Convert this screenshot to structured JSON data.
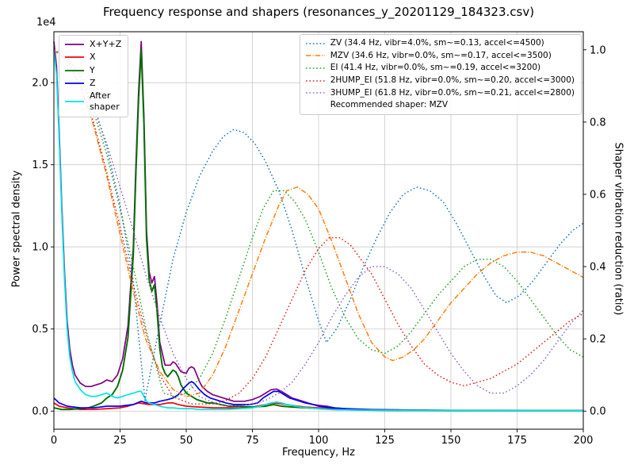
{
  "chart_data": {
    "type": "line",
    "title": "Frequency response and shapers (resonances_y_20201129_184323.csv)",
    "xlabel": "Frequency, Hz",
    "ylabel_left": "Power spectral density",
    "ylabel_right": "Shaper vibration reduction (ratio)",
    "offset_text": "1e4",
    "recommendation": "Recommended shaper: MZV",
    "grid": true,
    "psd_unit": "1e4",
    "xlim": [
      0,
      200
    ],
    "xticks": [
      0,
      25,
      50,
      75,
      100,
      125,
      150,
      175,
      200
    ],
    "xtick_labels": [
      "0",
      "25",
      "50",
      "75",
      "100",
      "125",
      "150",
      "175",
      "200"
    ],
    "ylim_left": [
      -0.11,
      2.31
    ],
    "yticks_left": [
      {
        "v": 0.0,
        "label": "0.0"
      },
      {
        "v": 0.5,
        "label": "0.5"
      },
      {
        "v": 1.0,
        "label": "1.0"
      },
      {
        "v": 1.5,
        "label": "1.5"
      },
      {
        "v": 2.0,
        "label": "2.0"
      }
    ],
    "ylim_right": [
      -0.05,
      1.05
    ],
    "yticks_right": [
      {
        "v": 0.0,
        "label": "0.0"
      },
      {
        "v": 0.2,
        "label": "0.2"
      },
      {
        "v": 0.4,
        "label": "0.4"
      },
      {
        "v": 0.6,
        "label": "0.6"
      },
      {
        "v": 0.8,
        "label": "0.8"
      },
      {
        "v": 1.0,
        "label": "1.0"
      }
    ],
    "colors": {
      "grid": "#c9c9c9",
      "spine": "#000000"
    },
    "psd_series": [
      {
        "name": "xyz",
        "label": "X+Y+Z",
        "color": "#800080",
        "style": "solid",
        "width": 1.7,
        "x": [
          0,
          1,
          2,
          3,
          4,
          5,
          6,
          7,
          8,
          10,
          12,
          14,
          16,
          18,
          20,
          22,
          24,
          26,
          28,
          30,
          31,
          32,
          33,
          34,
          35,
          36,
          37,
          38,
          39,
          40,
          42,
          44,
          45,
          46,
          48,
          50,
          51,
          52,
          53,
          54,
          55,
          56,
          58,
          60,
          62,
          64,
          66,
          68,
          70,
          72,
          75,
          78,
          80,
          82,
          84,
          86,
          88,
          90,
          92,
          94,
          96,
          98,
          100,
          103,
          106,
          110,
          115,
          120,
          130,
          140,
          150,
          160,
          170,
          180,
          190,
          200
        ],
        "y": [
          2.25,
          2.1,
          1.7,
          1.25,
          0.85,
          0.55,
          0.38,
          0.28,
          0.22,
          0.17,
          0.15,
          0.15,
          0.16,
          0.17,
          0.19,
          0.18,
          0.22,
          0.32,
          0.52,
          1.0,
          1.5,
          1.95,
          2.25,
          1.8,
          1.1,
          0.85,
          0.78,
          0.82,
          0.65,
          0.42,
          0.28,
          0.28,
          0.3,
          0.29,
          0.24,
          0.23,
          0.26,
          0.27,
          0.26,
          0.22,
          0.18,
          0.15,
          0.12,
          0.1,
          0.09,
          0.08,
          0.07,
          0.06,
          0.06,
          0.06,
          0.07,
          0.09,
          0.11,
          0.13,
          0.135,
          0.12,
          0.1,
          0.08,
          0.07,
          0.06,
          0.05,
          0.04,
          0.035,
          0.03,
          0.02,
          0.015,
          0.01,
          0.008,
          0.006,
          0.005,
          0.004,
          0.004,
          0.003,
          0.003,
          0.003,
          0.003
        ]
      },
      {
        "name": "x",
        "label": "X",
        "color": "#ff0000",
        "style": "solid",
        "width": 1.7,
        "x": [
          0,
          2,
          5,
          10,
          15,
          20,
          25,
          28,
          30,
          32,
          34,
          36,
          38,
          40,
          43,
          45,
          47,
          50,
          55,
          60,
          65,
          70,
          75,
          80,
          83,
          86,
          90,
          95,
          100,
          110,
          120,
          140,
          160,
          180,
          200
        ],
        "y": [
          0.05,
          0.03,
          0.02,
          0.01,
          0.01,
          0.015,
          0.02,
          0.03,
          0.04,
          0.05,
          0.045,
          0.04,
          0.04,
          0.04,
          0.05,
          0.05,
          0.04,
          0.03,
          0.025,
          0.02,
          0.02,
          0.02,
          0.025,
          0.04,
          0.05,
          0.045,
          0.035,
          0.025,
          0.02,
          0.01,
          0.008,
          0.005,
          0.004,
          0.003,
          0.003
        ]
      },
      {
        "name": "y",
        "label": "Y",
        "color": "#007000",
        "style": "solid",
        "width": 1.9,
        "x": [
          0,
          3,
          6,
          10,
          13,
          15,
          18,
          20,
          22,
          24,
          26,
          28,
          30,
          31,
          32,
          33,
          34,
          35,
          36,
          37,
          38,
          39,
          40,
          41,
          42,
          43,
          44,
          45,
          46,
          47,
          48,
          50,
          52,
          54,
          56,
          58,
          60,
          63,
          66,
          70,
          75,
          80,
          83,
          86,
          90,
          95,
          100,
          105,
          110,
          120,
          130,
          140,
          160,
          180,
          200
        ],
        "y": [
          0.02,
          0.01,
          0.01,
          0.015,
          0.02,
          0.03,
          0.05,
          0.08,
          0.1,
          0.15,
          0.25,
          0.45,
          0.95,
          1.45,
          1.9,
          2.2,
          1.75,
          1.05,
          0.8,
          0.73,
          0.77,
          0.6,
          0.38,
          0.27,
          0.23,
          0.21,
          0.23,
          0.25,
          0.24,
          0.21,
          0.16,
          0.11,
          0.09,
          0.07,
          0.06,
          0.05,
          0.05,
          0.04,
          0.03,
          0.03,
          0.025,
          0.03,
          0.04,
          0.03,
          0.025,
          0.02,
          0.015,
          0.01,
          0.008,
          0.005,
          0.004,
          0.003,
          0.002,
          0.002,
          0.002
        ]
      },
      {
        "name": "z",
        "label": "Z",
        "color": "#0000ff",
        "style": "solid",
        "width": 1.7,
        "x": [
          0,
          2,
          5,
          10,
          15,
          20,
          25,
          30,
          33,
          35,
          38,
          40,
          43,
          45,
          47,
          49,
          51,
          52,
          53,
          55,
          57,
          59,
          61,
          63,
          65,
          68,
          71,
          74,
          77,
          79,
          81,
          83,
          85,
          87,
          89,
          91,
          93,
          95,
          98,
          100,
          105,
          110,
          120,
          130,
          140,
          150,
          160,
          170,
          180,
          190,
          200
        ],
        "y": [
          0.08,
          0.05,
          0.03,
          0.02,
          0.02,
          0.03,
          0.03,
          0.04,
          0.06,
          0.05,
          0.05,
          0.06,
          0.07,
          0.08,
          0.1,
          0.14,
          0.17,
          0.18,
          0.17,
          0.13,
          0.1,
          0.08,
          0.07,
          0.06,
          0.05,
          0.04,
          0.04,
          0.04,
          0.05,
          0.08,
          0.1,
          0.12,
          0.12,
          0.1,
          0.08,
          0.07,
          0.06,
          0.05,
          0.04,
          0.03,
          0.02,
          0.015,
          0.01,
          0.008,
          0.006,
          0.005,
          0.004,
          0.004,
          0.003,
          0.003,
          0.003
        ]
      },
      {
        "name": "after-shaper",
        "label": "After\nshaper",
        "color": "#00e5e5",
        "style": "solid",
        "width": 1.7,
        "x": [
          0,
          1,
          2,
          3,
          4,
          5,
          6,
          7,
          8,
          10,
          12,
          14,
          16,
          18,
          20,
          22,
          24,
          26,
          28,
          30,
          31,
          32,
          33,
          34,
          35,
          36,
          38,
          40,
          43,
          45,
          48,
          50,
          52,
          55,
          60,
          65,
          70,
          75,
          78,
          80,
          82,
          84,
          86,
          88,
          90,
          93,
          96,
          100,
          105,
          110,
          120,
          130,
          140,
          150,
          160,
          170,
          180,
          190,
          200
        ],
        "y": [
          2.2,
          2.05,
          1.65,
          1.2,
          0.8,
          0.5,
          0.33,
          0.24,
          0.18,
          0.13,
          0.1,
          0.09,
          0.09,
          0.1,
          0.11,
          0.09,
          0.08,
          0.09,
          0.1,
          0.11,
          0.115,
          0.12,
          0.12,
          0.09,
          0.06,
          0.05,
          0.04,
          0.03,
          0.02,
          0.02,
          0.015,
          0.015,
          0.015,
          0.01,
          0.01,
          0.01,
          0.015,
          0.02,
          0.03,
          0.04,
          0.05,
          0.055,
          0.05,
          0.04,
          0.035,
          0.025,
          0.02,
          0.015,
          0.01,
          0.008,
          0.006,
          0.005,
          0.004,
          0.004,
          0.003,
          0.003,
          0.003,
          0.003,
          0.003
        ]
      }
    ],
    "shaper_series": [
      {
        "name": "zv",
        "label": "ZV (34.4 Hz, vibr=4.0%, sm~=0.13, accel<=4500)",
        "color": "#1f77b4",
        "style": "dotted",
        "width": 1.5,
        "x": [
          0,
          5,
          10,
          15,
          20,
          25,
          30,
          34.4,
          40,
          45,
          50,
          55,
          60,
          64,
          68,
          72,
          76,
          80,
          85,
          90,
          95,
          100,
          103,
          107,
          112,
          117,
          122,
          127,
          132,
          137,
          142,
          147,
          152,
          157,
          162,
          167,
          171,
          176,
          181,
          186,
          191,
          196,
          200
        ],
        "y": [
          1.0,
          0.98,
          0.93,
          0.85,
          0.73,
          0.57,
          0.36,
          0.03,
          0.24,
          0.42,
          0.55,
          0.65,
          0.72,
          0.76,
          0.78,
          0.77,
          0.74,
          0.69,
          0.61,
          0.5,
          0.37,
          0.25,
          0.19,
          0.23,
          0.31,
          0.4,
          0.48,
          0.55,
          0.6,
          0.62,
          0.61,
          0.58,
          0.52,
          0.45,
          0.38,
          0.32,
          0.3,
          0.32,
          0.36,
          0.41,
          0.46,
          0.5,
          0.52
        ]
      },
      {
        "name": "mzv",
        "label": "MZV (34.6 Hz, vibr=0.0%, sm~=0.17, accel<=3500)",
        "color": "#ff7f0e",
        "style": "dashdot",
        "width": 1.5,
        "x": [
          0,
          5,
          10,
          15,
          20,
          25,
          30,
          34.6,
          40,
          45,
          50,
          55,
          60,
          65,
          70,
          75,
          80,
          85,
          88,
          92,
          96,
          100,
          105,
          110,
          115,
          120,
          125,
          128,
          132,
          136,
          140,
          145,
          150,
          155,
          160,
          165,
          170,
          175,
          180,
          185,
          190,
          195,
          200
        ],
        "y": [
          1.0,
          0.97,
          0.9,
          0.79,
          0.65,
          0.49,
          0.33,
          0.2,
          0.11,
          0.06,
          0.04,
          0.05,
          0.1,
          0.18,
          0.28,
          0.38,
          0.48,
          0.57,
          0.61,
          0.62,
          0.6,
          0.56,
          0.47,
          0.37,
          0.27,
          0.19,
          0.15,
          0.14,
          0.15,
          0.17,
          0.2,
          0.25,
          0.3,
          0.34,
          0.38,
          0.41,
          0.43,
          0.44,
          0.44,
          0.43,
          0.41,
          0.39,
          0.37
        ]
      },
      {
        "name": "ei",
        "label": "EI (41.4 Hz, vibr=0.0%, sm~=0.19, accel<=3200)",
        "color": "#2ca02c",
        "style": "dotted",
        "width": 1.5,
        "x": [
          0,
          5,
          10,
          15,
          20,
          25,
          30,
          35,
          41.4,
          46,
          50,
          55,
          60,
          65,
          70,
          75,
          79,
          83,
          87,
          91,
          95,
          100,
          105,
          110,
          115,
          120,
          125,
          130,
          135,
          140,
          145,
          150,
          155,
          160,
          165,
          170,
          175,
          180,
          185,
          190,
          195,
          200
        ],
        "y": [
          1.0,
          0.98,
          0.92,
          0.83,
          0.71,
          0.56,
          0.4,
          0.22,
          0.05,
          0.04,
          0.05,
          0.09,
          0.16,
          0.26,
          0.37,
          0.48,
          0.56,
          0.61,
          0.61,
          0.58,
          0.53,
          0.44,
          0.34,
          0.26,
          0.2,
          0.17,
          0.16,
          0.18,
          0.22,
          0.27,
          0.32,
          0.36,
          0.4,
          0.42,
          0.42,
          0.4,
          0.36,
          0.31,
          0.26,
          0.21,
          0.17,
          0.15
        ]
      },
      {
        "name": "2hump-ei",
        "label": "2HUMP_EI (51.8 Hz, vibr=0.0%, sm~=0.20, accel<=3000)",
        "color": "#d62728",
        "style": "dotted",
        "width": 1.5,
        "x": [
          0,
          5,
          10,
          15,
          20,
          25,
          30,
          35,
          40,
          45,
          51.8,
          56,
          60,
          65,
          70,
          75,
          80,
          85,
          90,
          95,
          100,
          104,
          108,
          112,
          116,
          120,
          125,
          130,
          135,
          140,
          145,
          150,
          155,
          160,
          165,
          170,
          175,
          180,
          185,
          190,
          195,
          200
        ],
        "y": [
          1.0,
          0.97,
          0.9,
          0.8,
          0.66,
          0.51,
          0.35,
          0.21,
          0.1,
          0.04,
          0.02,
          0.02,
          0.02,
          0.03,
          0.05,
          0.09,
          0.15,
          0.23,
          0.31,
          0.39,
          0.45,
          0.48,
          0.48,
          0.46,
          0.42,
          0.38,
          0.31,
          0.24,
          0.18,
          0.13,
          0.1,
          0.08,
          0.07,
          0.08,
          0.09,
          0.11,
          0.13,
          0.16,
          0.19,
          0.22,
          0.25,
          0.27
        ]
      },
      {
        "name": "3hump-ei",
        "label": "3HUMP_EI (61.8 Hz, vibr=0.0%, sm~=0.21, accel<=2800)",
        "color": "#9467bd",
        "style": "dotted",
        "width": 1.5,
        "x": [
          0,
          5,
          10,
          15,
          20,
          25,
          30,
          35,
          40,
          45,
          50,
          55,
          61.8,
          66,
          70,
          75,
          80,
          85,
          90,
          95,
          100,
          105,
          110,
          115,
          120,
          125,
          130,
          135,
          140,
          145,
          150,
          155,
          160,
          165,
          170,
          175,
          180,
          185,
          190,
          195,
          200
        ],
        "y": [
          1.0,
          0.98,
          0.92,
          0.84,
          0.74,
          0.62,
          0.5,
          0.37,
          0.26,
          0.16,
          0.09,
          0.04,
          0.02,
          0.015,
          0.015,
          0.02,
          0.03,
          0.05,
          0.08,
          0.13,
          0.19,
          0.26,
          0.32,
          0.37,
          0.4,
          0.4,
          0.38,
          0.34,
          0.28,
          0.22,
          0.16,
          0.11,
          0.07,
          0.05,
          0.05,
          0.07,
          0.1,
          0.14,
          0.19,
          0.24,
          0.28
        ]
      }
    ]
  }
}
